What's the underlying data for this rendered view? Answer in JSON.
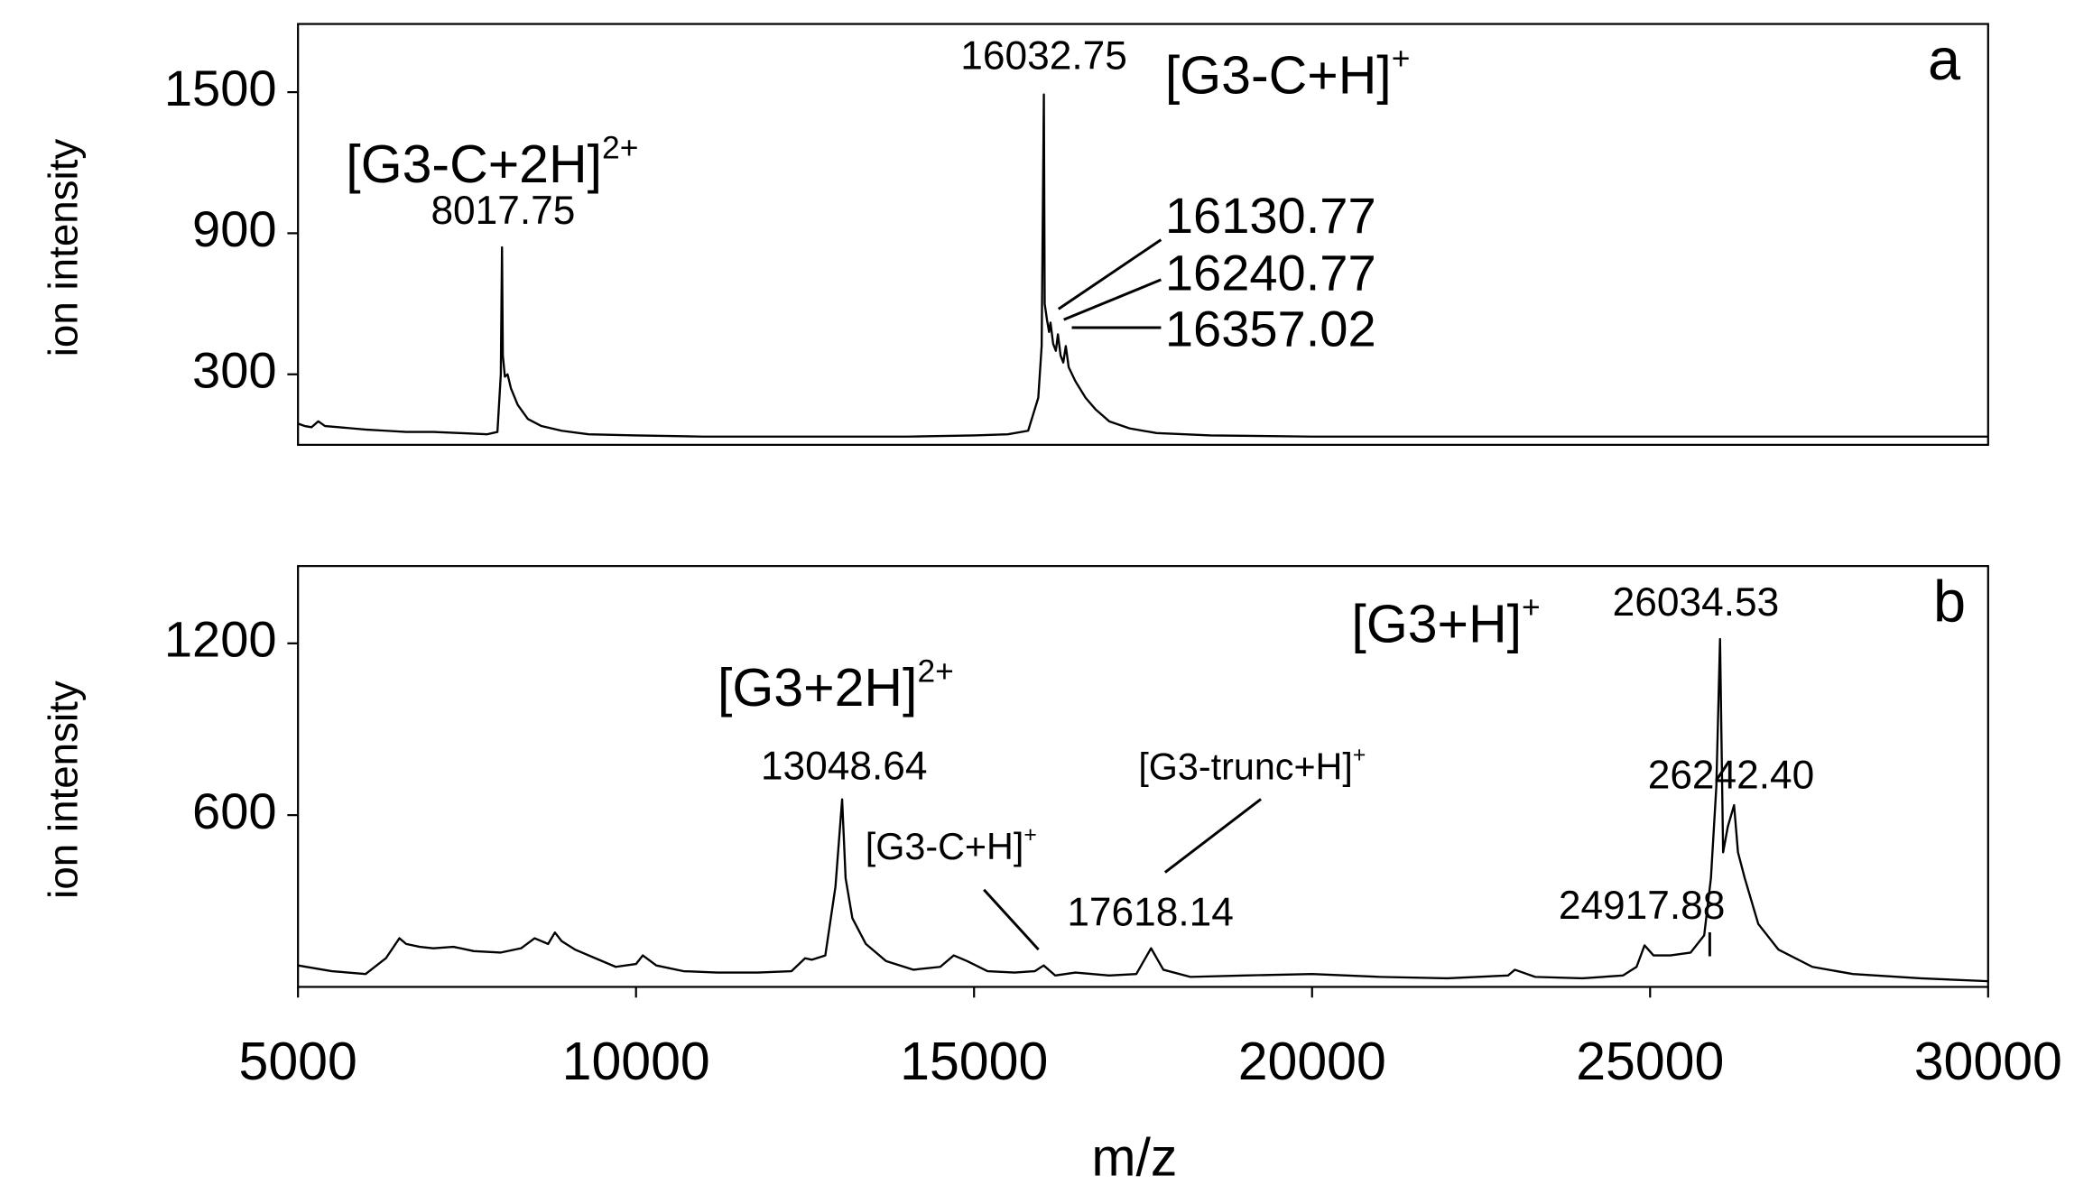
{
  "chart_data": [
    {
      "type": "line",
      "panel": "a",
      "ylabel": "ion intensity",
      "xlim": [
        5000,
        30000
      ],
      "ylim": [
        0,
        1790
      ],
      "yticks": [
        300,
        900,
        1500
      ],
      "x": [
        5000,
        5100,
        5200,
        5300,
        5400,
        5600,
        5800,
        6000,
        6300,
        6600,
        7000,
        7400,
        7800,
        7950,
        8000,
        8017.75,
        8030,
        8060,
        8100,
        8150,
        8250,
        8400,
        8600,
        8900,
        9300,
        10000,
        11000,
        12000,
        13000,
        14000,
        15000,
        15500,
        15800,
        15950,
        16000,
        16032.75,
        16045,
        16080,
        16110,
        16130.77,
        16170,
        16210,
        16240.77,
        16280,
        16320,
        16357.02,
        16400,
        16500,
        16650,
        16800,
        17000,
        17300,
        17700,
        18500,
        20000,
        22000,
        25000,
        28000,
        30000
      ],
      "series": [
        {
          "color": "#000000",
          "values": [
            90,
            80,
            75,
            100,
            80,
            75,
            70,
            65,
            60,
            55,
            55,
            50,
            45,
            55,
            300,
            840,
            380,
            290,
            300,
            240,
            170,
            110,
            80,
            60,
            45,
            40,
            35,
            35,
            35,
            35,
            40,
            45,
            60,
            200,
            420,
            1490,
            600,
            530,
            480,
            520,
            430,
            400,
            470,
            380,
            350,
            420,
            330,
            270,
            200,
            150,
            100,
            70,
            50,
            40,
            35,
            35,
            35,
            35,
            35
          ]
        }
      ],
      "annotations": [
        {
          "text": "[G3-C+2H]",
          "sup": "2+"
        },
        {
          "text": "8017.75"
        },
        {
          "text": "16032.75"
        },
        {
          "text": "[G3-C+H]",
          "sup": "+"
        },
        {
          "text": "16130.77"
        },
        {
          "text": "16240.77"
        },
        {
          "text": "16357.02"
        }
      ]
    },
    {
      "type": "line",
      "panel": "b",
      "ylabel": "ion intensity",
      "xlabel": "m/z",
      "xlim": [
        5000,
        30000
      ],
      "xticks": [
        5000,
        10000,
        15000,
        20000,
        25000,
        30000
      ],
      "ylim": [
        0,
        1470
      ],
      "yticks": [
        600,
        1200
      ],
      "x": [
        5000,
        5500,
        6000,
        6300,
        6500,
        6600,
        6800,
        7000,
        7300,
        7600,
        8000,
        8300,
        8500,
        8700,
        8800,
        8900,
        9100,
        9400,
        9700,
        10000,
        10100,
        10300,
        10700,
        11200,
        11800,
        12300,
        12500,
        12600,
        12800,
        12950,
        13048.64,
        13100,
        13200,
        13400,
        13700,
        14100,
        14500,
        14700,
        14900,
        15200,
        15600,
        15900,
        16030,
        16200,
        16500,
        17000,
        17400,
        17618.14,
        17800,
        18200,
        19000,
        20000,
        21000,
        22000,
        22900,
        23000,
        23300,
        24000,
        24600,
        24800,
        24917.88,
        25050,
        25300,
        25600,
        25800,
        25900,
        25980,
        26034.53,
        26080,
        26150,
        26242.4,
        26300,
        26400,
        26600,
        26900,
        27400,
        28000,
        29000,
        30000
      ],
      "series": [
        {
          "color": "#000000",
          "values": [
            75,
            55,
            45,
            100,
            170,
            150,
            140,
            135,
            140,
            125,
            120,
            135,
            170,
            150,
            190,
            160,
            130,
            100,
            70,
            80,
            110,
            75,
            55,
            50,
            50,
            55,
            100,
            95,
            110,
            350,
            655,
            380,
            240,
            150,
            90,
            60,
            70,
            110,
            90,
            55,
            50,
            55,
            75,
            40,
            50,
            40,
            45,
            135,
            60,
            35,
            40,
            45,
            35,
            30,
            40,
            60,
            35,
            30,
            40,
            70,
            145,
            110,
            110,
            120,
            180,
            380,
            700,
            1215,
            470,
            560,
            635,
            470,
            380,
            220,
            130,
            70,
            45,
            30,
            20
          ]
        }
      ],
      "annotations": [
        {
          "text": "[G3+2H]",
          "sup": "2+"
        },
        {
          "text": "13048.64"
        },
        {
          "text": "[G3-C+H]",
          "sup": "+"
        },
        {
          "text": "[G3-trunc+H]",
          "sup": "+"
        },
        {
          "text": "17618.14"
        },
        {
          "text": "[G3+H]",
          "sup": "+"
        },
        {
          "text": "26034.53"
        },
        {
          "text": "26242.40"
        },
        {
          "text": "24917.88"
        }
      ]
    }
  ]
}
